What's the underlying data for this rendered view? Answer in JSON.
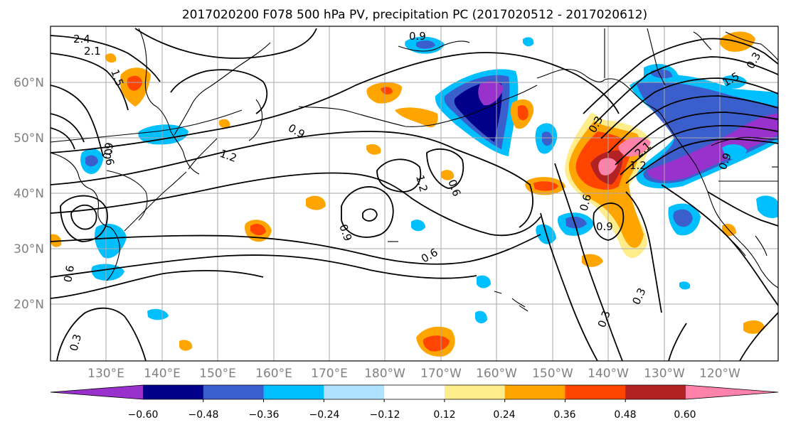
{
  "title": "2017020200 F078 500 hPa PV, precipitation PC (2017020512 - 2017020612)",
  "lat_labels": [
    "60°N",
    "50°N",
    "40°N",
    "30°N",
    "20°N"
  ],
  "lon_labels": [
    "130°E",
    "140°E",
    "150°E",
    "160°E",
    "170°E",
    "180°W",
    "170°W",
    "160°W",
    "150°W",
    "140°W",
    "130°W",
    "120°W"
  ],
  "contour_labels": [
    "2.4",
    "2.1",
    "1.5",
    "0.9",
    "0.6",
    "0.9",
    "1.2",
    "1.2",
    "0.6",
    "0.9",
    "0.6",
    "0.3",
    "0.6",
    "0.9",
    "1.2",
    "2.1",
    "0.3",
    "0.3",
    "0.3",
    "0.6",
    "0.9",
    "1.5",
    "0.3",
    "0.9"
  ],
  "colorbar": {
    "tick_labels": [
      "−0.60",
      "−0.48",
      "−0.36",
      "−0.24",
      "−0.12",
      "0.12",
      "0.24",
      "0.36",
      "0.48",
      "0.60"
    ],
    "colors": [
      "#9932CC",
      "#00008B",
      "#3A5FCD",
      "#00BFFF",
      "#B0E2FF",
      "#FFFFFF",
      "#FFEC8B",
      "#FFA500",
      "#FF4500",
      "#B22222",
      "#FF82AB"
    ]
  }
}
